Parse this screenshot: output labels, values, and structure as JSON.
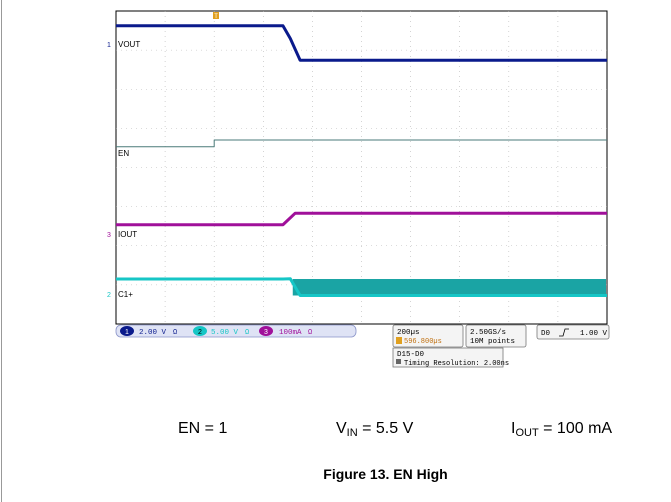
{
  "chart_data": {
    "type": "line",
    "title": "",
    "x_time_per_div": "200µs",
    "trigger_position": "596.800µs",
    "series": [
      {
        "name": "VOUT",
        "channel": "1",
        "color": "#0a1a8c",
        "scale": "2.00 V",
        "x": [
          0,
          3.4,
          3.55,
          3.75,
          10
        ],
        "y": [
          2.15,
          2.15,
          1.3,
          -0.15,
          -0.15
        ]
      },
      {
        "name": "EN",
        "channel": "D0",
        "color": "#4a7a78",
        "x": [
          0,
          2.0,
          2.0,
          10
        ],
        "y": [
          -0.45,
          -0.45,
          0.0,
          0.0
        ]
      },
      {
        "name": "IOUT",
        "channel": "3",
        "color": "#a0109a",
        "scale": "100mA",
        "x": [
          0,
          3.4,
          3.65,
          10
        ],
        "y": [
          -0.05,
          -0.05,
          0.72,
          0.72
        ]
      },
      {
        "name": "C1+",
        "channel": "2",
        "color": "#16c6c6",
        "scale": "5.00 V",
        "x": [
          0,
          3.4,
          3.55,
          3.75,
          10
        ],
        "y": [
          0.2,
          0.2,
          0.22,
          -0.9,
          -0.9
        ],
        "ripple_after_x": 3.6,
        "ripple_band": [
          -0.9,
          0.2
        ]
      }
    ],
    "grid": true
  },
  "scope": {
    "trigger_marker": "T",
    "ch1_label": "VOUT",
    "en_label": "EN",
    "ch3_label": "IOUT",
    "ch2_label": "C1+",
    "ch1_scale": "2.00 V",
    "ch1_coupling": "Ω",
    "ch2_scale": "5.00 V",
    "ch2_coupling": "Ω",
    "ch3_scale": "100mA",
    "ch3_coupling": "Ω",
    "ch1_num": "1",
    "ch2_num": "2",
    "ch3_num": "3",
    "timebase": "200µs",
    "trigger_pos": "596.800µs",
    "sample_rate": "2.50GS/s",
    "record_length": "10M points",
    "trigger_src": "D0",
    "trigger_level": "1.00 V",
    "digital_range": "D15-D0",
    "timing_resolution": "Timing Resolution: 2.00ns"
  },
  "params": {
    "en": "EN = 1",
    "vin_prefix": "V",
    "vin_sub": "IN",
    "vin_value": " = 5.5 V",
    "iout_prefix": "I",
    "iout_sub": "OUT",
    "iout_value": " = 100 mA"
  },
  "caption": "Figure 13. EN High"
}
